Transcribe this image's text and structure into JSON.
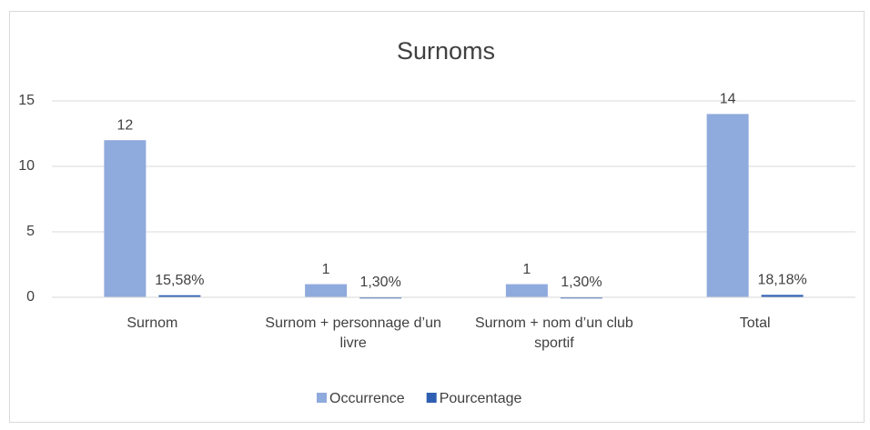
{
  "chart_data": {
    "type": "bar",
    "title": "Surnoms",
    "categories": [
      "Surnom",
      "Surnom + personnage d’un livre",
      "Surnom + nom d’un club sportif",
      "Total"
    ],
    "series": [
      {
        "name": "Occurrence",
        "color": "#8faadc",
        "values": [
          12,
          1,
          1,
          14
        ]
      },
      {
        "name": "Pourcentage",
        "color": "#2f5fb3",
        "values": [
          0.1558,
          0.013,
          0.013,
          0.1818
        ],
        "value_labels": [
          "15,58%",
          "1,30%",
          "1,30%",
          "18,18%"
        ]
      }
    ],
    "ylim": [
      0,
      15
    ],
    "yticks": [
      0,
      5,
      10,
      15
    ],
    "grid": true,
    "legend": "bottom"
  }
}
